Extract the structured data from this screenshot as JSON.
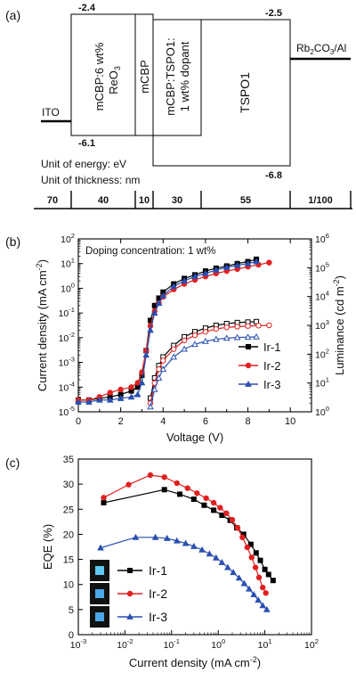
{
  "panel_labels": {
    "a": "(a)",
    "b": "(b)",
    "c": "(c)"
  },
  "energy_diagram": {
    "layers": [
      {
        "name": "ITO",
        "work_function": null
      },
      {
        "name": "mCBP:6 wt% ReO3",
        "lumo": "-2.4",
        "homo": "-6.1"
      },
      {
        "name": "mCBP"
      },
      {
        "name": "mCBP:TSPO1: 1 wt% dopant"
      },
      {
        "name": "TSPO1",
        "lumo": "-2.5",
        "homo": "-6.8"
      },
      {
        "name": "Rb2CO3/Al"
      }
    ],
    "labels": {
      "ito": "ITO",
      "htl_line1": "mCBP:6 wt%",
      "htl_line2": "ReO",
      "htl_sub": "3",
      "mcbp": "mCBP",
      "eml_line1": "mCBP:TSPO1:",
      "eml_line2": "1 wt% dopant",
      "tspo1": "TSPO1",
      "cathode_a": "Rb",
      "cathode_sub1": "2",
      "cathode_b": "CO",
      "cathode_sub2": "3",
      "cathode_c": "/Al",
      "lumo_htl": "-2.4",
      "homo_htl": "-6.1",
      "lumo_tspo": "-2.5",
      "homo_tspo": "-6.8",
      "unit_energy": "Unit of energy: eV",
      "unit_thickness": "Unit of thickness: nm"
    },
    "thicknesses": [
      "70",
      "40",
      "10",
      "30",
      "55",
      "1/100"
    ]
  },
  "chart_data": [
    {
      "type": "line",
      "annotation": "Doping concentration: 1 wt%",
      "xlabel": "Voltage (V)",
      "ylabel_left": "Current density (mA cm",
      "ylabel_left_sup": "-2",
      "ylabel_right": "Luminance (cd m",
      "ylabel_right_sup": "-2",
      "xlim": [
        0,
        11
      ],
      "xticks": [
        "0",
        "2",
        "4",
        "6",
        "8",
        "10"
      ],
      "ylim_left": [
        1e-05,
        100
      ],
      "yticks_left": [
        {
          "base": "10",
          "exp": "2"
        },
        {
          "base": "10",
          "exp": "1"
        },
        {
          "base": "10",
          "exp": "0"
        },
        {
          "base": "10",
          "exp": "-1"
        },
        {
          "base": "10",
          "exp": "-2"
        },
        {
          "base": "10",
          "exp": "-3"
        },
        {
          "base": "10",
          "exp": "-4"
        },
        {
          "base": "10",
          "exp": "-5"
        }
      ],
      "ylim_right": [
        1,
        1000000.0
      ],
      "yticks_right": [
        {
          "base": "10",
          "exp": "6"
        },
        {
          "base": "10",
          "exp": "5"
        },
        {
          "base": "10",
          "exp": "4"
        },
        {
          "base": "10",
          "exp": "3"
        },
        {
          "base": "10",
          "exp": "2"
        },
        {
          "base": "10",
          "exp": "1"
        },
        {
          "base": "10",
          "exp": "0"
        }
      ],
      "series": [
        {
          "name": "Ir-1",
          "color": "#000000",
          "marker": "square",
          "current_density": {
            "x": [
              0,
              0.5,
              1,
              1.5,
              2,
              2.5,
              2.8,
              3.0,
              3.2,
              3.4,
              3.6,
              3.8,
              4.0,
              4.5,
              5,
              5.5,
              6,
              6.5,
              7,
              7.5,
              8,
              8.4
            ],
            "y": [
              3e-05,
              3e-05,
              3.5e-05,
              4e-05,
              5e-05,
              7e-05,
              0.0001,
              0.0003,
              0.003,
              0.05,
              0.2,
              0.4,
              0.7,
              1.5,
              2.5,
              3.5,
              5,
              6.5,
              8,
              10,
              12,
              15
            ]
          },
          "luminance": {
            "x": [
              3.4,
              3.6,
              3.8,
              4.0,
              4.5,
              5,
              5.5,
              6,
              6.5,
              7,
              7.5,
              8,
              8.4
            ],
            "y": [
              3,
              15,
              40,
              80,
              200,
              400,
              600,
              800,
              1000,
              1150,
              1250,
              1300,
              1350
            ]
          }
        },
        {
          "name": "Ir-2",
          "color": "#e02020",
          "marker": "circle",
          "current_density": {
            "x": [
              0,
              0.5,
              1,
              1.5,
              2,
              2.5,
              2.8,
              3.0,
              3.2,
              3.4,
              3.6,
              3.8,
              4.0,
              4.5,
              5,
              5.5,
              6,
              6.5,
              7,
              7.5,
              8,
              8.5,
              9
            ],
            "y": [
              3e-05,
              3e-05,
              4e-05,
              6e-05,
              8e-05,
              0.0001,
              0.00015,
              0.0004,
              0.003,
              0.03,
              0.12,
              0.25,
              0.45,
              0.9,
              1.5,
              2.2,
              3.0,
              4.0,
              5.0,
              6.0,
              7.5,
              9,
              11
            ]
          },
          "luminance": {
            "x": [
              3.4,
              3.6,
              3.8,
              4.0,
              4.5,
              5,
              5.5,
              6,
              6.5,
              7,
              7.5,
              8,
              8.5,
              9
            ],
            "y": [
              2,
              10,
              30,
              60,
              150,
              300,
              450,
              600,
              750,
              850,
              900,
              950,
              980,
              1000
            ]
          }
        },
        {
          "name": "Ir-3",
          "color": "#2a4fb0",
          "marker": "triangle",
          "current_density": {
            "x": [
              0,
              0.5,
              1,
              1.5,
              2,
              2.5,
              2.8,
              3.0,
              3.2,
              3.4,
              3.6,
              3.8,
              4.0,
              4.5,
              5,
              5.5,
              6,
              6.5,
              7,
              7.5,
              8,
              8.4
            ],
            "y": [
              2.5e-05,
              2.5e-05,
              3e-05,
              3e-05,
              3.5e-05,
              4e-05,
              5e-05,
              0.00015,
              0.002,
              0.02,
              0.1,
              0.25,
              0.5,
              1.2,
              2.0,
              3.0,
              4.0,
              5.5,
              7.0,
              8.5,
              10,
              12
            ]
          },
          "luminance": {
            "x": [
              3.4,
              3.6,
              3.8,
              4.0,
              4.5,
              5,
              5.5,
              6,
              6.5,
              7,
              7.5,
              8,
              8.4
            ],
            "y": [
              1.5,
              6,
              15,
              30,
              80,
              150,
              220,
              280,
              330,
              360,
              380,
              390,
              400
            ]
          }
        }
      ]
    },
    {
      "type": "line",
      "xlabel": "Current density (mA cm",
      "xlabel_sup": "-2",
      "ylabel": "EQE (%)",
      "xlim": [
        0.001,
        100
      ],
      "xticks": [
        {
          "base": "10",
          "exp": "-3"
        },
        {
          "base": "10",
          "exp": "-2"
        },
        {
          "base": "10",
          "exp": "-1"
        },
        {
          "base": "10",
          "exp": "0"
        },
        {
          "base": "10",
          "exp": "1"
        },
        {
          "base": "10",
          "exp": "2"
        }
      ],
      "ylim": [
        0,
        35
      ],
      "yticks": [
        "0",
        "5",
        "10",
        "15",
        "20",
        "25",
        "30",
        "35"
      ],
      "series": [
        {
          "name": "Ir-1",
          "color": "#000000",
          "marker": "square",
          "x": [
            0.0035,
            0.07,
            0.15,
            0.3,
            0.5,
            0.8,
            1.2,
            1.8,
            2.5,
            3.5,
            5,
            6.5,
            8,
            10,
            12,
            15
          ],
          "y": [
            26.3,
            28.9,
            28.0,
            27.0,
            25.8,
            24.8,
            23.8,
            22.8,
            21.3,
            20.0,
            18.0,
            16.3,
            14.8,
            13.0,
            12.0,
            10.8
          ]
        },
        {
          "name": "Ir-2",
          "color": "#e02020",
          "marker": "circle",
          "x": [
            0.0035,
            0.012,
            0.035,
            0.07,
            0.13,
            0.22,
            0.35,
            0.55,
            0.8,
            1.1,
            1.5,
            2.0,
            2.6,
            3.3,
            4.2,
            5.2,
            6.3,
            7.5,
            9,
            10.5
          ],
          "y": [
            27.3,
            29.9,
            31.8,
            31.4,
            30.2,
            29.2,
            28.2,
            27.2,
            26.3,
            25.3,
            24.2,
            22.9,
            21.3,
            19.4,
            17.4,
            15.4,
            13.4,
            11.4,
            9.4,
            8.3
          ]
        },
        {
          "name": "Ir-3",
          "color": "#2a4fb0",
          "marker": "triangle",
          "x": [
            0.003,
            0.017,
            0.045,
            0.08,
            0.13,
            0.2,
            0.3,
            0.45,
            0.65,
            0.9,
            1.2,
            1.6,
            2.1,
            2.8,
            3.6,
            4.6,
            5.8,
            7.2,
            9,
            11
          ],
          "y": [
            17.3,
            19.4,
            19.4,
            19.2,
            18.7,
            18.2,
            17.6,
            16.9,
            16.1,
            15.3,
            14.4,
            13.4,
            12.4,
            11.3,
            10.2,
            9.1,
            8.0,
            6.9,
            5.8,
            5.0
          ]
        }
      ]
    }
  ]
}
